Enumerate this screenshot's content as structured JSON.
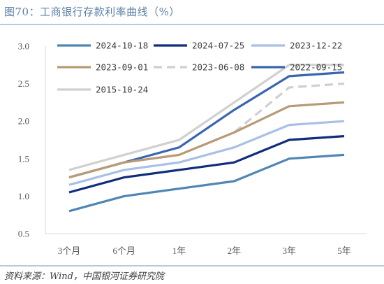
{
  "title": "图70：工商银行存款利率曲线（%）",
  "source": "资料来源：Wind，中国银河证券研究院",
  "chart_data": {
    "type": "line",
    "title": "图70：工商银行存款利率曲线（%）",
    "xlabel": "",
    "ylabel": "",
    "categories": [
      "3个月",
      "6个月",
      "1年",
      "2年",
      "3年",
      "5年"
    ],
    "ylim": [
      0.5,
      3.0
    ],
    "yticks": [
      "0.5",
      "1.0",
      "1.5",
      "2.0",
      "2.5",
      "3.0"
    ],
    "grid": false,
    "legend_position": "top",
    "series": [
      {
        "name": "2024-10-18",
        "color": "#4f86b5",
        "dashed": false,
        "values": [
          0.8,
          1.0,
          1.1,
          1.2,
          1.5,
          1.55
        ]
      },
      {
        "name": "2024-07-25",
        "color": "#0f2d7a",
        "dashed": false,
        "values": [
          1.05,
          1.25,
          1.35,
          1.45,
          1.75,
          1.8
        ]
      },
      {
        "name": "2023-12-22",
        "color": "#a9c0e4",
        "dashed": false,
        "values": [
          1.15,
          1.35,
          1.45,
          1.65,
          1.95,
          2.0
        ]
      },
      {
        "name": "2023-09-01",
        "color": "#b99a75",
        "dashed": false,
        "values": [
          1.25,
          1.45,
          1.55,
          1.85,
          2.2,
          2.25
        ]
      },
      {
        "name": "2023-06-08",
        "color": "#cfcfcf",
        "dashed": true,
        "values": [
          1.25,
          1.45,
          1.55,
          1.85,
          2.45,
          2.5
        ]
      },
      {
        "name": "2022-09-15",
        "color": "#3a65b0",
        "dashed": false,
        "values": [
          1.25,
          1.45,
          1.65,
          2.15,
          2.6,
          2.65
        ]
      },
      {
        "name": "2015-10-24",
        "color": "#d0d0d0",
        "dashed": false,
        "values": [
          1.35,
          1.55,
          1.75,
          2.25,
          2.75,
          2.75
        ]
      }
    ]
  }
}
